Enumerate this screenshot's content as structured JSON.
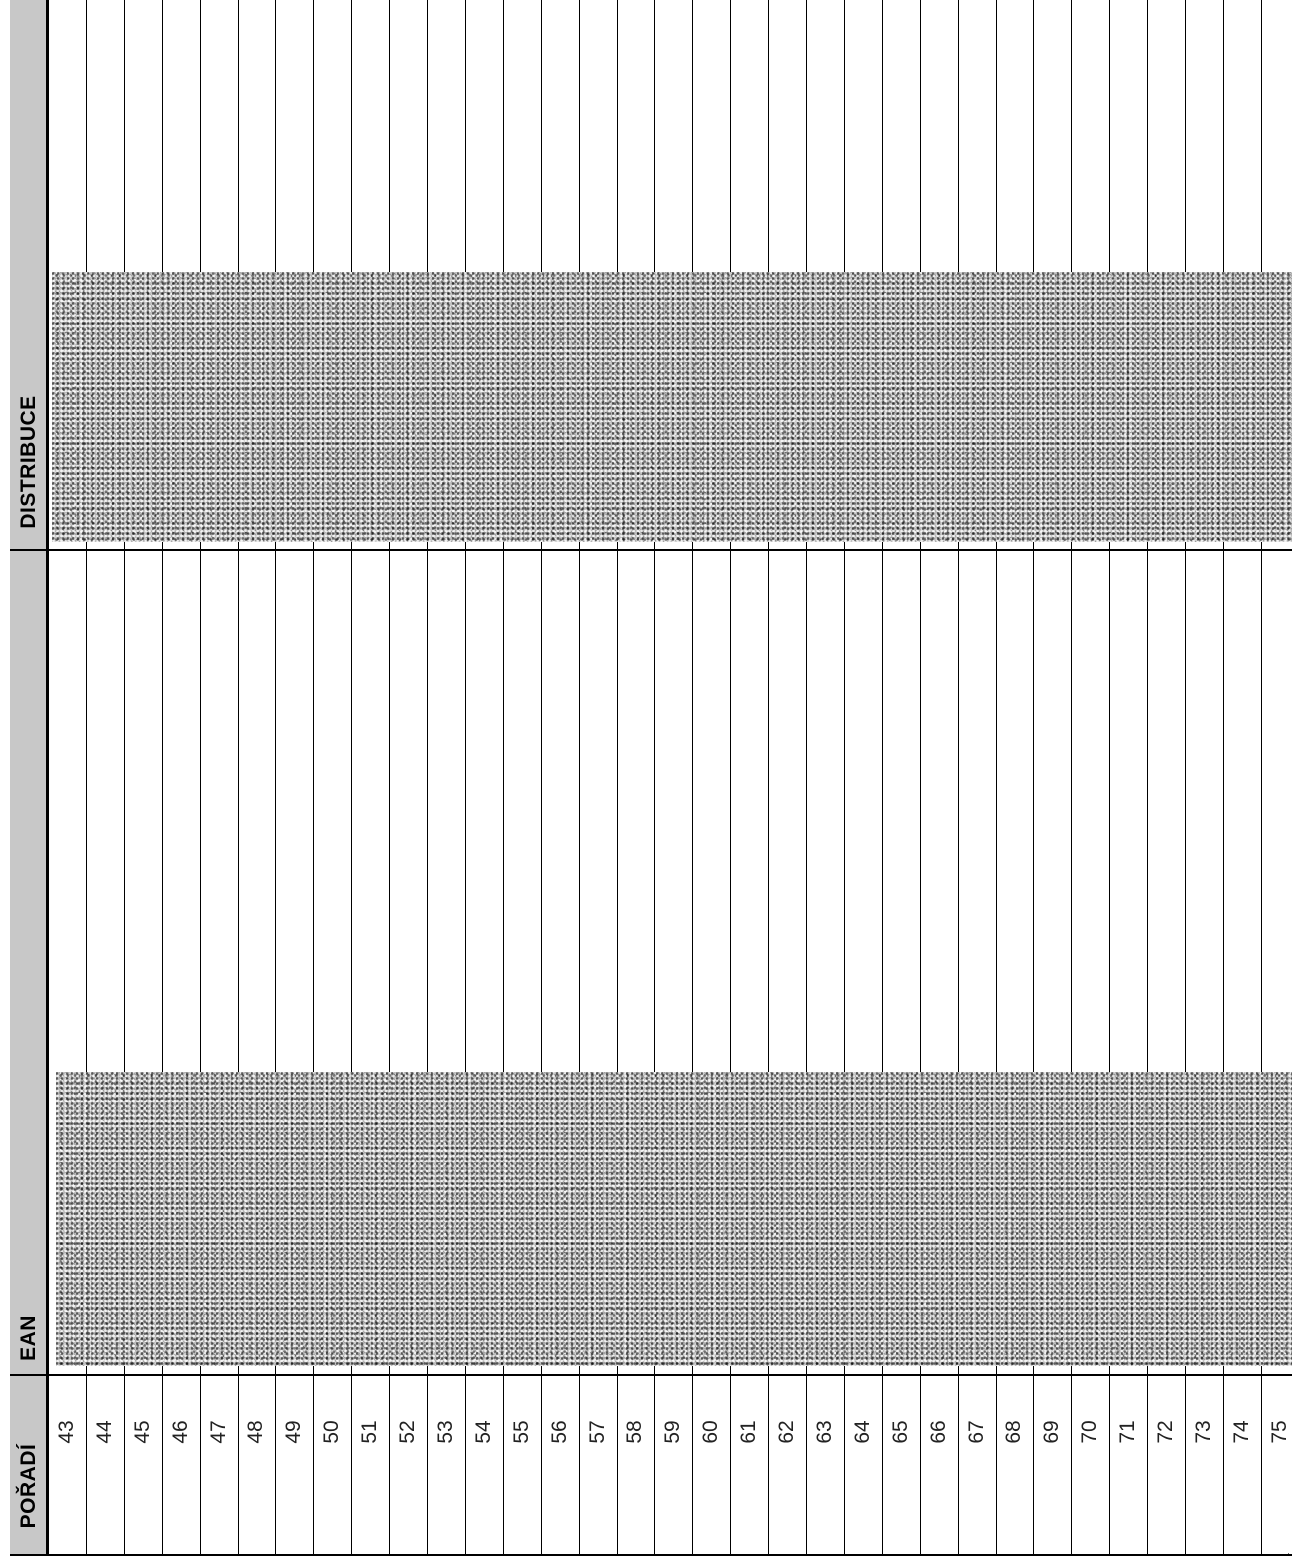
{
  "form": {
    "headers": {
      "order": "POŘADÍ",
      "ean": "EAN",
      "distribution": "DISTRIBUCE"
    },
    "rows": [
      "43",
      "44",
      "45",
      "46",
      "47",
      "48",
      "49",
      "50",
      "51",
      "52",
      "53",
      "54",
      "55",
      "56",
      "57",
      "58",
      "59",
      "60",
      "61",
      "62",
      "63",
      "64",
      "65",
      "66",
      "67",
      "68",
      "69",
      "70",
      "71",
      "72",
      "73",
      "74",
      "75"
    ],
    "corner_mark": "·"
  }
}
